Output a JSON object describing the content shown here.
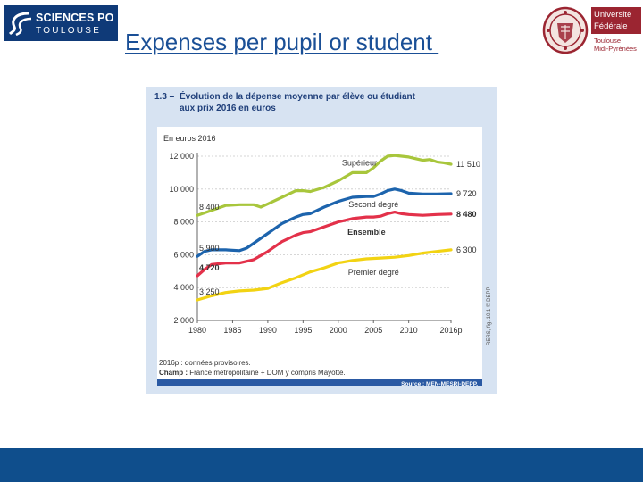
{
  "header": {
    "title": "Expenses per pupil or student ",
    "logo_left": {
      "line1": "SCIENCES PO",
      "line2": "TOULOUSE"
    },
    "logo_right": {
      "line1": "Université",
      "line2": "Fédérale",
      "line3": "Toulouse",
      "line4": "Midi-Pyrénées"
    }
  },
  "colors": {
    "brand_blue": "#0f3a78",
    "title_blue": "#1a4f96",
    "footer_blue": "#0f4e8c",
    "univ_red": "#9b2531",
    "chart_bg": "#d7e3f2",
    "accent_navy": "#1f3f7a"
  },
  "chart_data": {
    "type": "line",
    "figure_number": "1.3 –",
    "title": "Évolution de la dépense moyenne par élève ou étudiant aux prix 2016 en euros",
    "title_lines": [
      "Évolution de la dépense moyenne par élève ou étudiant",
      "aux prix 2016 en euros"
    ],
    "ylabel": "En euros 2016",
    "xlabel": "",
    "ylim": [
      2000,
      12000
    ],
    "xlim": [
      1980,
      2016
    ],
    "y_ticks": [
      2000,
      4000,
      6000,
      8000,
      10000,
      12000
    ],
    "y_tick_labels": [
      "2 000",
      "4 000",
      "6 000",
      "8 000",
      "10 000",
      "12 000"
    ],
    "x_ticks": [
      1980,
      1985,
      1990,
      1995,
      2000,
      2005,
      2010,
      2016
    ],
    "x_tick_labels": [
      "1980",
      "1985",
      "1990",
      "1995",
      "2000",
      "2005",
      "2010",
      "2016p"
    ],
    "series": [
      {
        "name": "Supérieur",
        "color": "#a8c63c",
        "bold": false,
        "points": [
          [
            1980,
            8400
          ],
          [
            1982,
            8700
          ],
          [
            1984,
            9000
          ],
          [
            1986,
            9050
          ],
          [
            1988,
            9050
          ],
          [
            1989,
            8900
          ],
          [
            1990,
            9100
          ],
          [
            1992,
            9500
          ],
          [
            1994,
            9900
          ],
          [
            1995,
            9900
          ],
          [
            1996,
            9850
          ],
          [
            1998,
            10100
          ],
          [
            2000,
            10500
          ],
          [
            2002,
            11000
          ],
          [
            2003,
            11000
          ],
          [
            2004,
            11000
          ],
          [
            2005,
            11300
          ],
          [
            2006,
            11700
          ],
          [
            2007,
            12000
          ],
          [
            2008,
            12050
          ],
          [
            2009,
            12000
          ],
          [
            2010,
            11950
          ],
          [
            2011,
            11850
          ],
          [
            2012,
            11750
          ],
          [
            2013,
            11800
          ],
          [
            2014,
            11650
          ],
          [
            2015,
            11600
          ],
          [
            2016,
            11510
          ]
        ],
        "start_label": "8 400",
        "end_label": "11 510"
      },
      {
        "name": "Second degré",
        "color": "#1d64ad",
        "bold": false,
        "points": [
          [
            1980,
            5900
          ],
          [
            1981,
            6200
          ],
          [
            1982,
            6300
          ],
          [
            1984,
            6300
          ],
          [
            1986,
            6250
          ],
          [
            1987,
            6400
          ],
          [
            1988,
            6700
          ],
          [
            1990,
            7300
          ],
          [
            1992,
            7900
          ],
          [
            1994,
            8300
          ],
          [
            1995,
            8450
          ],
          [
            1996,
            8500
          ],
          [
            1998,
            8900
          ],
          [
            2000,
            9250
          ],
          [
            2002,
            9500
          ],
          [
            2004,
            9550
          ],
          [
            2005,
            9550
          ],
          [
            2006,
            9700
          ],
          [
            2007,
            9900
          ],
          [
            2008,
            10000
          ],
          [
            2009,
            9900
          ],
          [
            2010,
            9750
          ],
          [
            2012,
            9700
          ],
          [
            2014,
            9700
          ],
          [
            2016,
            9720
          ]
        ],
        "start_label": "5 900",
        "end_label": "9 720"
      },
      {
        "name": "Ensemble",
        "color": "#e3314a",
        "bold": true,
        "points": [
          [
            1980,
            4720
          ],
          [
            1981,
            5100
          ],
          [
            1982,
            5400
          ],
          [
            1984,
            5500
          ],
          [
            1986,
            5500
          ],
          [
            1988,
            5700
          ],
          [
            1990,
            6200
          ],
          [
            1992,
            6800
          ],
          [
            1994,
            7200
          ],
          [
            1995,
            7350
          ],
          [
            1996,
            7400
          ],
          [
            1998,
            7700
          ],
          [
            2000,
            8000
          ],
          [
            2002,
            8200
          ],
          [
            2004,
            8300
          ],
          [
            2005,
            8300
          ],
          [
            2006,
            8350
          ],
          [
            2007,
            8500
          ],
          [
            2008,
            8600
          ],
          [
            2009,
            8500
          ],
          [
            2010,
            8450
          ],
          [
            2012,
            8400
          ],
          [
            2014,
            8450
          ],
          [
            2016,
            8480
          ]
        ],
        "start_label": "4 720",
        "end_label": "8 480"
      },
      {
        "name": "Premier degré",
        "color": "#f2d313",
        "bold": false,
        "points": [
          [
            1980,
            3250
          ],
          [
            1982,
            3500
          ],
          [
            1984,
            3700
          ],
          [
            1986,
            3800
          ],
          [
            1988,
            3850
          ],
          [
            1990,
            3950
          ],
          [
            1992,
            4300
          ],
          [
            1994,
            4600
          ],
          [
            1996,
            4950
          ],
          [
            1998,
            5200
          ],
          [
            2000,
            5500
          ],
          [
            2002,
            5650
          ],
          [
            2004,
            5750
          ],
          [
            2006,
            5800
          ],
          [
            2008,
            5850
          ],
          [
            2010,
            5950
          ],
          [
            2012,
            6100
          ],
          [
            2014,
            6200
          ],
          [
            2016,
            6300
          ]
        ],
        "start_label": "3 250",
        "end_label": "6 300"
      }
    ],
    "notes": {
      "line1": "2016p : données provisoires.",
      "champ_label": "Champ :",
      "champ_text": " France métropolitaine + DOM y compris Mayotte.",
      "source": "Source : MEN-MESRI-DEPP.",
      "vertical": "RERS, fig. 10.1 © DEPP"
    }
  }
}
